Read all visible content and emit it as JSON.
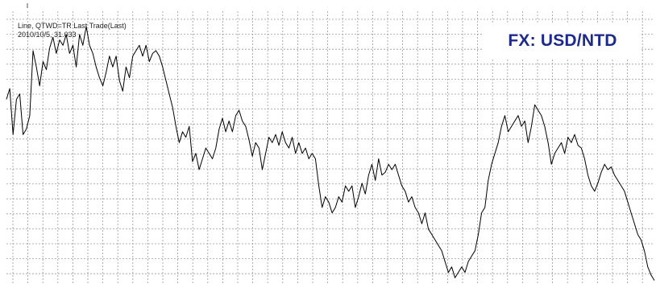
{
  "chart_data": {
    "type": "line",
    "title": "FX: USD/NTD",
    "legend_entry": "Line, QTWD=TR Last Trade(Last)",
    "readout": "2010/10/5, 31.033",
    "xlabel": "",
    "ylabel": "",
    "grid": true,
    "ylim": [
      0,
      100
    ],
    "values": [
      68,
      72,
      55,
      68,
      70,
      55,
      57,
      62,
      86,
      80,
      73,
      82,
      79,
      87,
      91,
      85,
      90,
      88,
      92,
      85,
      88,
      80,
      92,
      88,
      95,
      88,
      85,
      80,
      76,
      73,
      78,
      84,
      80,
      84,
      75,
      71,
      80,
      76,
      84,
      86,
      88,
      84,
      88,
      82,
      85,
      86,
      84,
      80,
      75,
      70,
      65,
      58,
      52,
      56,
      54,
      58,
      45,
      48,
      42,
      46,
      50,
      48,
      46,
      50,
      57,
      61,
      56,
      60,
      56,
      62,
      64,
      60,
      58,
      53,
      47,
      52,
      50,
      42,
      48,
      54,
      52,
      55,
      51,
      56,
      52,
      50,
      54,
      48,
      52,
      48,
      50,
      46,
      48,
      46,
      36,
      28,
      32,
      30,
      26,
      28,
      32,
      30,
      36,
      34,
      36,
      28,
      32,
      37,
      33,
      40,
      44,
      38,
      46,
      40,
      41,
      44,
      42,
      44,
      40,
      36,
      34,
      30,
      32,
      28,
      26,
      22,
      26,
      20,
      18,
      16,
      14,
      12,
      8,
      4,
      6,
      2,
      4,
      6,
      4,
      8,
      10,
      12,
      18,
      26,
      28,
      38,
      44,
      48,
      52,
      58,
      62,
      56,
      58,
      60,
      62,
      58,
      60,
      52,
      58,
      66,
      64,
      62,
      58,
      52,
      44,
      48,
      50,
      52,
      48,
      54,
      52,
      55,
      51,
      50,
      46,
      40,
      36,
      34,
      37,
      41,
      44,
      42,
      43,
      40,
      38,
      36,
      34,
      30,
      26,
      22,
      18,
      16,
      12,
      6,
      3,
      1
    ]
  }
}
